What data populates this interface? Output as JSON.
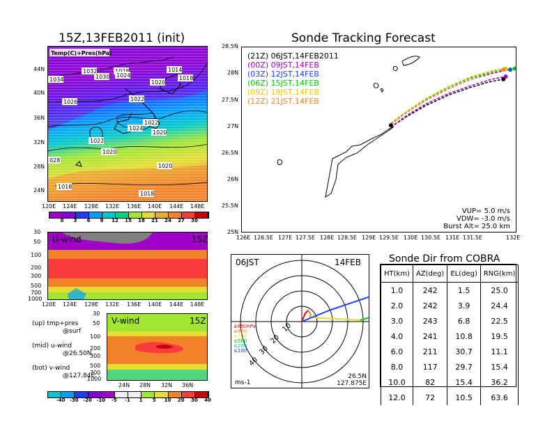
{
  "map_panel": {
    "title": "15Z,13FEB2011 (init)",
    "inner_label": "Temp(C)+Pres(hPa)",
    "lat_ticks": [
      "44N",
      "40N",
      "36N",
      "32N",
      "28N",
      "24N"
    ],
    "lon_ticks": [
      "120E",
      "124E",
      "128E",
      "132E",
      "136E",
      "140E",
      "144E",
      "148E"
    ],
    "isobar_labels": [
      "1034",
      "1032",
      "1030",
      "1028",
      "1024",
      "1020",
      "1014",
      "1018",
      "1026",
      "1022",
      "1022",
      "1024",
      "1022",
      "1020",
      "1020",
      "028",
      "1020",
      "1018",
      "1018"
    ],
    "colorbar_labels": [
      "0",
      "3",
      "6",
      "9",
      "12",
      "15",
      "18",
      "21",
      "24",
      "27",
      "30"
    ],
    "colorbar_colors": [
      "#a000c8",
      "#8200dc",
      "#1e3cff",
      "#00a0ff",
      "#00c8c8",
      "#00d28c",
      "#a0e632",
      "#e6dc32",
      "#e6af2d",
      "#f08228",
      "#fa3c3c",
      "#c80000"
    ]
  },
  "uwind_panel": {
    "label": "U-wind",
    "time": "15Z",
    "p_ticks": [
      "30",
      "50",
      "100",
      "200",
      "300",
      "500",
      "700",
      "1000"
    ],
    "lon_ticks": [
      "120E",
      "124E",
      "128E",
      "132E",
      "136E",
      "140E",
      "144E",
      "148E"
    ]
  },
  "vwind_panel": {
    "label": "V-wind",
    "time": "15Z",
    "p_ticks": [
      "30",
      "50",
      "100",
      "200",
      "300",
      "500",
      "700",
      "1000"
    ],
    "lat_ticks": [
      "24N",
      "28N",
      "32N",
      "36N"
    ],
    "colorbar_labels": [
      "-40",
      "-30",
      "-20",
      "-10",
      "-5",
      "-1",
      "1",
      "5",
      "10",
      "20",
      "30",
      "40"
    ],
    "colorbar_colors": [
      "#00c8c8",
      "#00a0ff",
      "#1e3cff",
      "#8200dc",
      "#a000c8",
      "#f0f0f0",
      "#f0f0f0",
      "#a0e632",
      "#e6dc32",
      "#f08228",
      "#fa3c3c",
      "#c80000"
    ]
  },
  "notes": {
    "up_line1": "(up) tmp+pres",
    "up_line2": "@surf",
    "mid_line1": "(mid) u-wind",
    "mid_line2": "@26.50N",
    "bot_line1": "(bot) v-wind",
    "bot_line2": "@127.84E"
  },
  "track_panel": {
    "title": "Sonde Tracking Forecast",
    "lat_ticks": [
      "28.5N",
      "28N",
      "27.5N",
      "27N",
      "26.5N",
      "26N",
      "25.5N",
      "25N"
    ],
    "lon_ticks": [
      "126E",
      "126.5E",
      "127E",
      "127.5E",
      "128E",
      "128.5E",
      "129E",
      "129.5E",
      "130E",
      "130.5E",
      "131E",
      "131.5E",
      "132E"
    ],
    "legend": [
      {
        "text": "(21Z) 06JST,14FEB2011",
        "color": "#000000"
      },
      {
        "text": "(00Z) 09JST,14FEB",
        "color": "#a000c8"
      },
      {
        "text": "(03Z) 12JST,14FEB",
        "color": "#1e3cff"
      },
      {
        "text": "(06Z) 15JST,14FEB",
        "color": "#00c800"
      },
      {
        "text": "(09Z) 18JST,14FEB",
        "color": "#e6c800"
      },
      {
        "text": "(12Z) 21JST,14FEB",
        "color": "#f08228"
      }
    ],
    "params_line1": "VUP= 5.0 m/s",
    "params_line2": "VDW= -3.0 m/s",
    "params_line3": "Burst Alt= 25.0 km"
  },
  "polar_panel": {
    "time_label": "06JST",
    "date_label": "14FEB",
    "ring_labels": [
      "10",
      "20",
      "30",
      "40"
    ],
    "level_legend": [
      {
        "text": "≥850hPa",
        "color": "#fa0000"
      },
      {
        "text": "≤850",
        "color": "#f08228"
      },
      {
        "text": "≤700",
        "color": "#e6dc32"
      },
      {
        "text": "≤500",
        "color": "#00c800"
      },
      {
        "text": "≤250",
        "color": "#00c8c8"
      },
      {
        "text": "≤100",
        "color": "#1e3cff"
      }
    ],
    "unit_label": "ms-1",
    "loc_lat": "26.5N",
    "loc_lon": "127.875E"
  },
  "cobra_table": {
    "title": "Sonde Dir from COBRA",
    "headers": [
      "HT(km)",
      "AZ(deg)",
      "EL(deg)",
      "RNG(km)"
    ],
    "rows": [
      [
        "1.0",
        "242",
        "1.5",
        "25.0"
      ],
      [
        "2.0",
        "242",
        "3.9",
        "24.4"
      ],
      [
        "3.0",
        "243",
        "6.8",
        "22.5"
      ],
      [
        "4.0",
        "241",
        "10.8",
        "19.5"
      ],
      [
        "6.0",
        "211",
        "30.7",
        "11.1"
      ],
      [
        "8.0",
        "117",
        "29.7",
        "15.4"
      ],
      [
        "10.0",
        "82",
        "15.4",
        "36.2"
      ],
      [
        "12.0",
        "72",
        "10.5",
        "63.6"
      ]
    ]
  },
  "chart_data": [
    {
      "type": "heatmap",
      "title": "15Z,13FEB2011 (init)",
      "subtitle": "Temp(C)+Pres(hPa)",
      "xlim": [
        120,
        150
      ],
      "ylim": [
        22,
        48
      ],
      "colorbar": [
        0,
        3,
        6,
        9,
        12,
        15,
        18,
        21,
        24,
        27,
        30
      ]
    },
    {
      "type": "heatmap",
      "title": "U-wind",
      "x_ticks": [
        "120E",
        "124E",
        "128E",
        "132E",
        "136E",
        "140E",
        "144E",
        "148E"
      ],
      "y_ticks": [
        "30",
        "50",
        "100",
        "200",
        "300",
        "500",
        "700",
        "1000"
      ]
    },
    {
      "type": "heatmap",
      "title": "V-wind",
      "x_ticks": [
        "24N",
        "28N",
        "32N",
        "36N"
      ],
      "y_ticks": [
        "30",
        "50",
        "100",
        "200",
        "300",
        "500",
        "700",
        "1000"
      ],
      "colorbar": [
        -40,
        -30,
        -20,
        -10,
        -5,
        -1,
        1,
        5,
        10,
        20,
        30,
        40
      ]
    },
    {
      "type": "line",
      "title": "Sonde Tracking Forecast",
      "xlim": [
        126,
        132
      ],
      "ylim": [
        25,
        28.5
      ],
      "launch": {
        "lon": 129.25,
        "lat": 27.03
      },
      "series": [
        {
          "name": "(21Z) 06JST,14FEB2011",
          "color": "#000000",
          "x": [
            129.25,
            129.6,
            130.0,
            130.5,
            131.0,
            131.4,
            131.7
          ],
          "y": [
            27.0,
            27.2,
            27.4,
            27.6,
            27.75,
            27.85,
            27.9
          ]
        },
        {
          "name": "(00Z) 09JST,14FEB",
          "color": "#a000c8",
          "x": [
            129.25,
            129.6,
            130.0,
            130.5,
            131.0,
            131.45,
            131.75
          ],
          "y": [
            27.0,
            27.22,
            27.43,
            27.63,
            27.78,
            27.9,
            27.95
          ]
        },
        {
          "name": "(03Z) 12JST,14FEB",
          "color": "#1e3cff",
          "x": [
            129.25,
            129.6,
            130.0,
            130.5,
            131.0,
            131.5,
            131.85
          ],
          "y": [
            27.05,
            27.28,
            27.5,
            27.72,
            27.9,
            28.02,
            28.08
          ]
        },
        {
          "name": "(06Z) 15JST,14FEB",
          "color": "#00c800",
          "x": [
            129.25,
            129.6,
            130.0,
            130.5,
            131.0,
            131.5,
            131.95
          ],
          "y": [
            27.07,
            27.3,
            27.52,
            27.75,
            27.93,
            28.05,
            28.1
          ]
        },
        {
          "name": "(09Z) 18JST,14FEB",
          "color": "#e6c800",
          "x": [
            129.25,
            129.6,
            130.0,
            130.5,
            131.0,
            131.5,
            131.75
          ],
          "y": [
            27.06,
            27.3,
            27.53,
            27.76,
            27.95,
            28.07,
            28.1
          ]
        },
        {
          "name": "(12Z) 21JST,14FEB",
          "color": "#f08228",
          "x": [
            129.25,
            129.6,
            130.0,
            130.5,
            131.0,
            131.45,
            131.7
          ],
          "y": [
            27.05,
            27.28,
            27.5,
            27.72,
            27.9,
            28.03,
            28.08
          ]
        }
      ],
      "notes": [
        "VUP= 5.0 m/s",
        "VDW= -3.0 m/s",
        "Burst Alt= 25.0 km"
      ]
    },
    {
      "type": "scatter",
      "title": "06JST 14FEB",
      "rings": [
        10,
        20,
        30,
        40
      ],
      "unit": "ms-1",
      "location": [
        "26.5N",
        "127.875E"
      ]
    },
    {
      "type": "table",
      "title": "Sonde Dir from COBRA",
      "columns": [
        "HT(km)",
        "AZ(deg)",
        "EL(deg)",
        "RNG(km)"
      ],
      "rows": [
        [
          1.0,
          242,
          1.5,
          25.0
        ],
        [
          2.0,
          242,
          3.9,
          24.4
        ],
        [
          3.0,
          243,
          6.8,
          22.5
        ],
        [
          4.0,
          241,
          10.8,
          19.5
        ],
        [
          6.0,
          211,
          30.7,
          11.1
        ],
        [
          8.0,
          117,
          29.7,
          15.4
        ],
        [
          10.0,
          82,
          15.4,
          36.2
        ],
        [
          12.0,
          72,
          10.5,
          63.6
        ]
      ]
    }
  ]
}
